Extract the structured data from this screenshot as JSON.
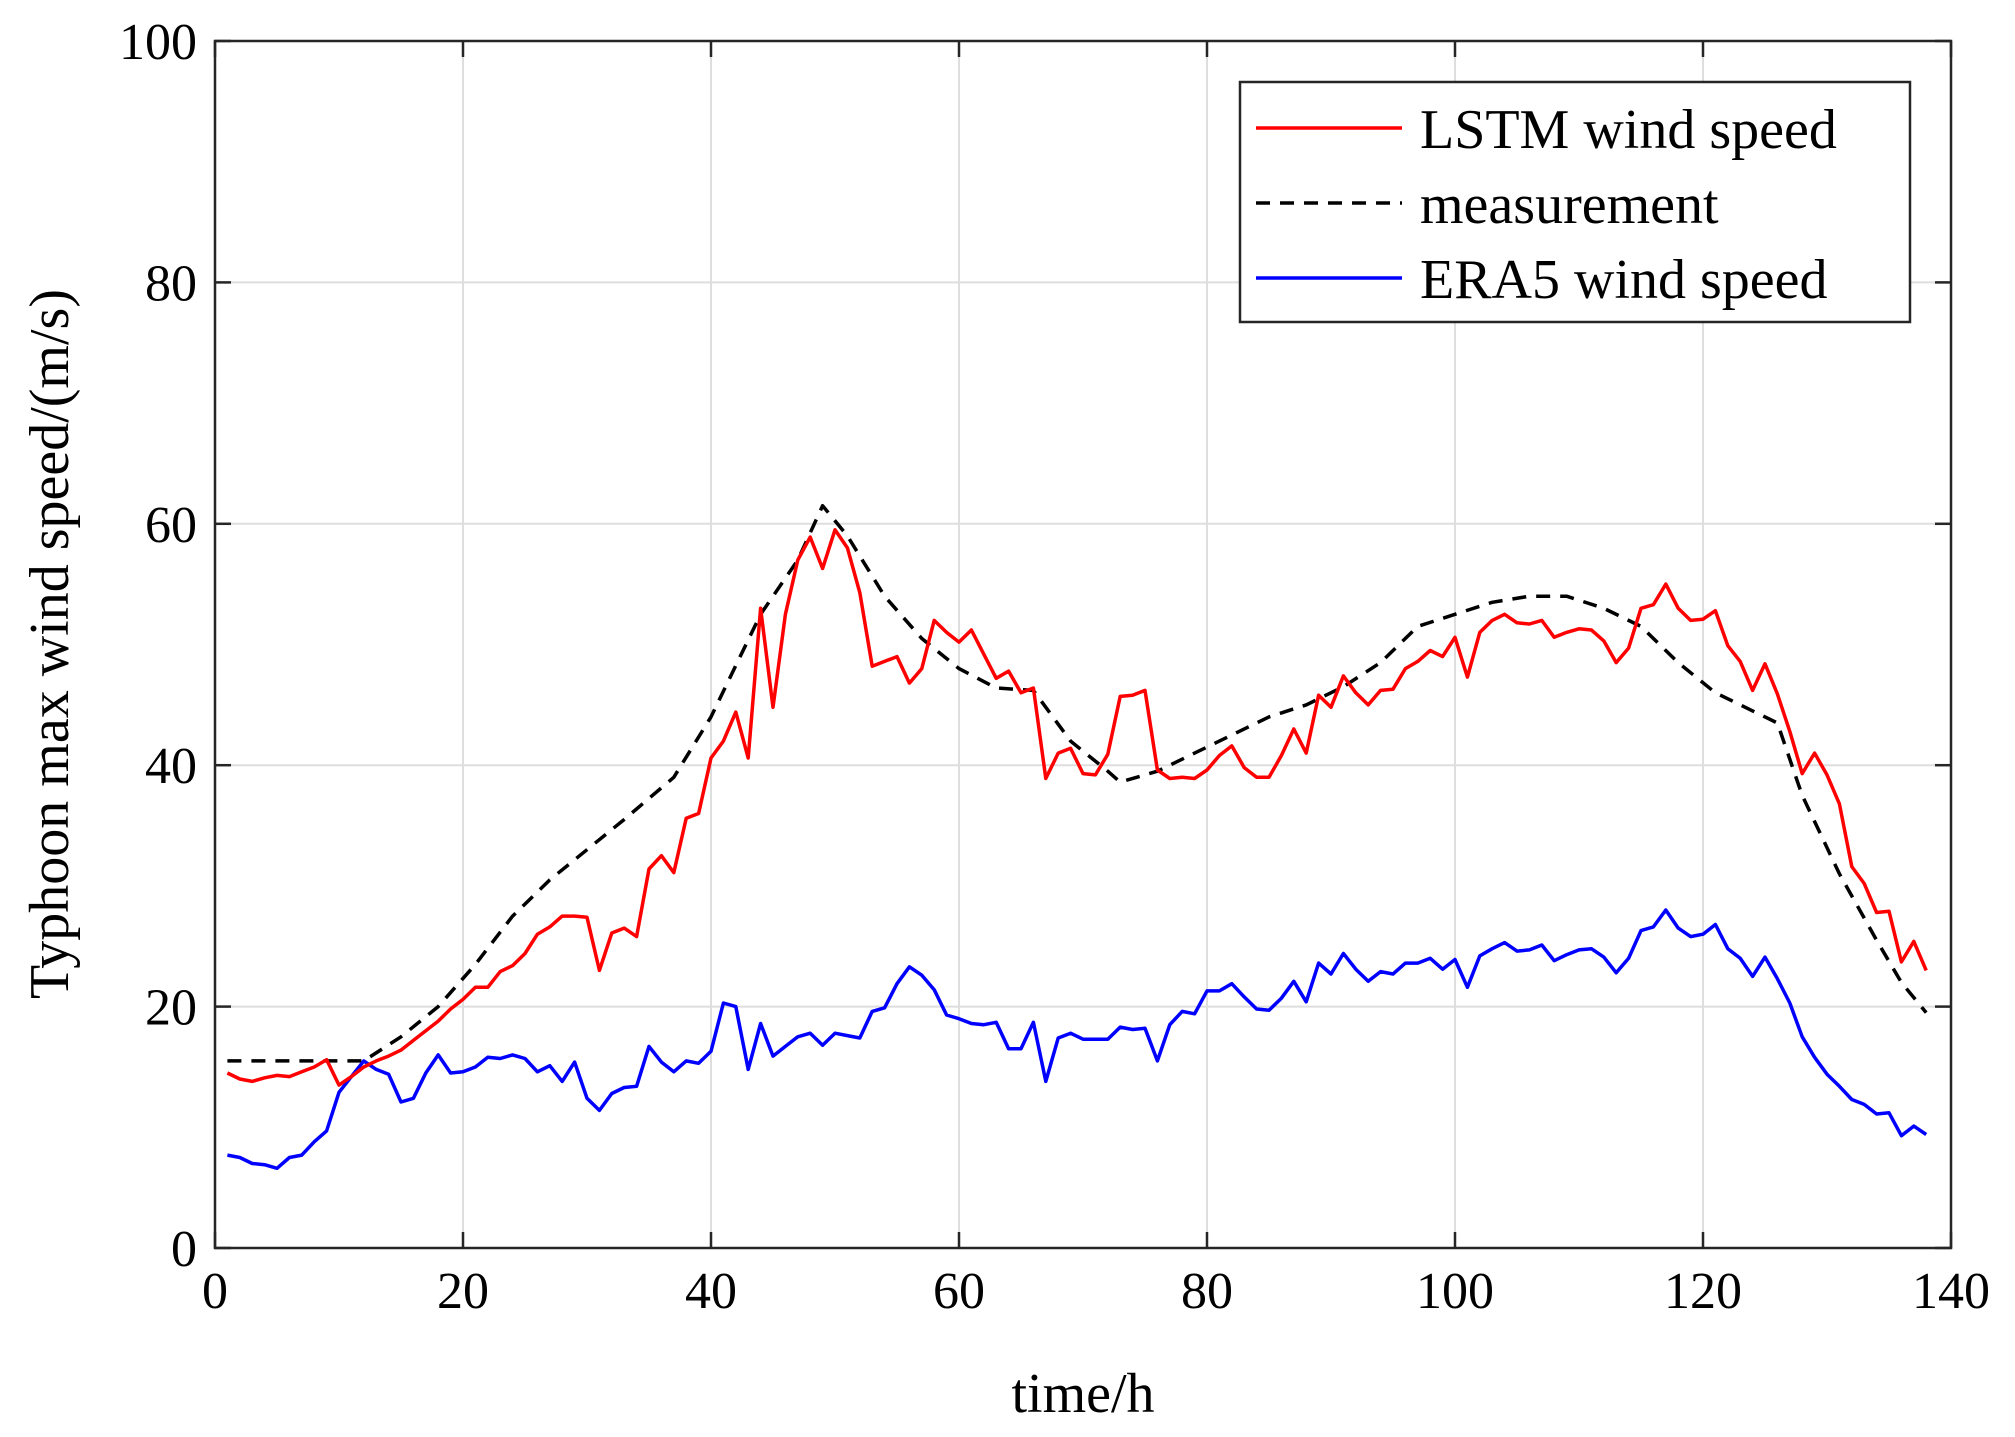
{
  "chart_data": {
    "type": "line",
    "title": "",
    "xlabel": "time/h",
    "ylabel": "Typhoon max wind speed/(m/s)",
    "xlim": [
      0,
      140
    ],
    "ylim": [
      0,
      100
    ],
    "xticks": [
      "0",
      "20",
      "40",
      "60",
      "80",
      "100",
      "120",
      "140"
    ],
    "yticks": [
      "0",
      "20",
      "40",
      "60",
      "80",
      "100"
    ],
    "grid": true,
    "legend_position": "top-right",
    "series": [
      {
        "name": "LSTM wind speed",
        "color": "#ff0000",
        "dash": "solid",
        "x": [
          1,
          2,
          3,
          4,
          5,
          6,
          7,
          8,
          9,
          10,
          11,
          12,
          13,
          14,
          15,
          16,
          17,
          18,
          19,
          20,
          21,
          22,
          23,
          24,
          25,
          26,
          27,
          28,
          29,
          30,
          31,
          32,
          33,
          34,
          35,
          36,
          37,
          38,
          39,
          40,
          41,
          42,
          43,
          44,
          45,
          46,
          47,
          48,
          49,
          50,
          51,
          52,
          53,
          54,
          55,
          56,
          57,
          58,
          59,
          60,
          61,
          62,
          63,
          64,
          65,
          66,
          67,
          68,
          69,
          70,
          71,
          72,
          73,
          74,
          75,
          76,
          77,
          78,
          79,
          80,
          81,
          82,
          83,
          84,
          85,
          86,
          87,
          88,
          89,
          90,
          91,
          92,
          93,
          94,
          95,
          96,
          97,
          98,
          99,
          100,
          101,
          102,
          103,
          104,
          105,
          106,
          107,
          108,
          109,
          110,
          111,
          112,
          113,
          114,
          115,
          116,
          117,
          118,
          119,
          120,
          121,
          122,
          123,
          124,
          125,
          126,
          127,
          128,
          129,
          130,
          131,
          132,
          133,
          134,
          135,
          136,
          137,
          138
        ],
        "values": [
          14.5,
          14,
          13.8,
          14.1,
          14.3,
          14.2,
          14.6,
          15,
          15.6,
          13.5,
          14.2,
          15,
          15.5,
          15.9,
          16.4,
          17.2,
          18,
          18.8,
          19.8,
          20.6,
          21.6,
          21.6,
          22.9,
          23.4,
          24.4,
          26,
          26.6,
          27.5,
          27.5,
          27.4,
          23,
          26.1,
          26.5,
          25.8,
          31.4,
          32.5,
          31.1,
          35.6,
          36,
          40.6,
          42,
          44.4,
          40.6,
          53,
          44.8,
          52.5,
          57,
          58.9,
          56.3,
          59.5,
          58,
          54.3,
          48.2,
          48.6,
          49,
          46.8,
          48,
          52,
          51,
          50.2,
          51.2,
          49.2,
          47.2,
          47.8,
          46,
          46.4,
          38.9,
          41,
          41.4,
          39.3,
          39.2,
          40.9,
          45.7,
          45.8,
          46.2,
          39.6,
          38.9,
          39,
          38.9,
          39.6,
          40.8,
          41.6,
          39.8,
          39,
          39,
          40.8,
          43,
          41,
          45.8,
          44.8,
          47.4,
          46,
          45,
          46.2,
          46.3,
          48,
          48.6,
          49.5,
          49,
          50.6,
          47.3,
          51,
          52,
          52.5,
          51.8,
          51.7,
          52,
          50.6,
          51,
          51.3,
          51.2,
          50.3,
          48.5,
          49.7,
          53,
          53.3,
          55,
          53,
          52,
          52.1,
          52.8,
          49.9,
          48.6,
          46.2,
          48.4,
          45.9,
          42.8,
          39.3,
          41,
          39.2,
          36.8,
          31.6,
          30.2,
          27.8,
          27.9,
          23.7,
          25.4,
          23
        ]
      },
      {
        "name": "measurement",
        "color": "#000000",
        "dash": "dashed",
        "x": [
          1,
          3,
          6,
          9,
          12,
          15,
          18,
          21,
          24,
          27,
          30,
          33,
          37,
          40,
          44,
          47,
          49,
          51,
          54,
          57,
          60,
          63,
          66,
          69,
          72,
          73,
          76,
          79,
          82,
          85,
          88,
          91,
          94,
          97,
          100,
          103,
          106,
          109,
          112,
          115,
          118,
          121,
          124,
          126,
          128,
          131,
          134,
          136,
          138
        ],
        "values": [
          15.5,
          15.5,
          15.5,
          15.5,
          15.5,
          17.5,
          20,
          23.5,
          27.5,
          30.5,
          33,
          35.5,
          39,
          44,
          52.5,
          57,
          61.5,
          59,
          54,
          50.5,
          48,
          46.4,
          46.2,
          42,
          39.5,
          38.6,
          39.5,
          41,
          42.5,
          44,
          45,
          46.5,
          48.5,
          51.5,
          52.5,
          53.5,
          54,
          54,
          53,
          51.5,
          48.5,
          46,
          44.5,
          43.5,
          37.5,
          31,
          25.5,
          22,
          19.5
        ]
      },
      {
        "name": "ERA5 wind speed",
        "color": "#0000ff",
        "dash": "solid",
        "x": [
          1,
          2,
          3,
          4,
          5,
          6,
          7,
          8,
          9,
          10,
          11,
          12,
          13,
          14,
          15,
          16,
          17,
          18,
          19,
          20,
          21,
          22,
          23,
          24,
          25,
          26,
          27,
          28,
          29,
          30,
          31,
          32,
          33,
          34,
          35,
          36,
          37,
          38,
          39,
          40,
          41,
          42,
          43,
          44,
          45,
          46,
          47,
          48,
          49,
          50,
          51,
          52,
          53,
          54,
          55,
          56,
          57,
          58,
          59,
          60,
          61,
          62,
          63,
          64,
          65,
          66,
          67,
          68,
          69,
          70,
          71,
          72,
          73,
          74,
          75,
          76,
          77,
          78,
          79,
          80,
          81,
          82,
          83,
          84,
          85,
          86,
          87,
          88,
          89,
          90,
          91,
          92,
          93,
          94,
          95,
          96,
          97,
          98,
          99,
          100,
          101,
          102,
          103,
          104,
          105,
          106,
          107,
          108,
          109,
          110,
          111,
          112,
          113,
          114,
          115,
          116,
          117,
          118,
          119,
          120,
          121,
          122,
          123,
          124,
          125,
          126,
          127,
          128,
          129,
          130,
          131,
          132,
          133,
          134,
          135,
          136,
          137,
          138
        ],
        "values": [
          7.7,
          7.5,
          7,
          6.9,
          6.6,
          7.5,
          7.7,
          8.8,
          9.7,
          12.9,
          14.2,
          15.5,
          14.8,
          14.4,
          12.1,
          12.4,
          14.5,
          16,
          14.5,
          14.6,
          15,
          15.8,
          15.7,
          16,
          15.7,
          14.6,
          15.1,
          13.8,
          15.4,
          12.4,
          11.4,
          12.8,
          13.3,
          13.4,
          16.7,
          15.4,
          14.6,
          15.5,
          15.3,
          16.3,
          20.3,
          20,
          14.8,
          18.6,
          15.9,
          16.7,
          17.5,
          17.8,
          16.8,
          17.8,
          17.6,
          17.4,
          19.6,
          19.9,
          21.9,
          23.3,
          22.6,
          21.4,
          19.3,
          19,
          18.6,
          18.5,
          18.7,
          16.5,
          16.5,
          18.7,
          13.8,
          17.4,
          17.8,
          17.3,
          17.3,
          17.3,
          18.3,
          18.1,
          18.2,
          15.5,
          18.5,
          19.6,
          19.4,
          21.3,
          21.3,
          21.9,
          20.8,
          19.8,
          19.7,
          20.7,
          22.1,
          20.4,
          23.6,
          22.7,
          24.4,
          23.1,
          22.1,
          22.9,
          22.7,
          23.6,
          23.6,
          24,
          23.1,
          23.9,
          21.6,
          24.2,
          24.8,
          25.3,
          24.6,
          24.7,
          25.1,
          23.8,
          24.3,
          24.7,
          24.8,
          24.1,
          22.8,
          24,
          26.3,
          26.6,
          28,
          26.5,
          25.8,
          26,
          26.8,
          24.8,
          24,
          22.5,
          24.1,
          22.3,
          20.3,
          17.5,
          15.8,
          14.4,
          13.4,
          12.3,
          11.9,
          11.1,
          11.2,
          9.3,
          10.1,
          9.4
        ]
      }
    ]
  }
}
